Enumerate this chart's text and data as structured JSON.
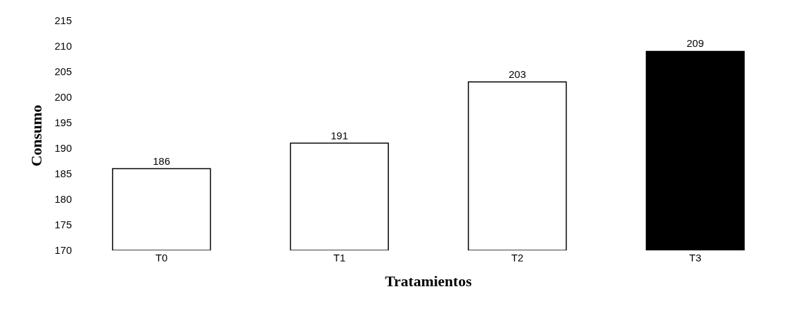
{
  "chart_data": {
    "type": "bar",
    "xlabel": "Tratamientos",
    "ylabel": "Consumo",
    "categories": [
      "T0",
      "T1",
      "T2",
      "T3"
    ],
    "values": [
      186,
      191,
      203,
      209
    ],
    "colors": [
      "#ffffff",
      "#ffffff",
      "#ffffff",
      "#000000"
    ],
    "ylim": [
      170,
      215
    ],
    "yticks": [
      170,
      175,
      180,
      185,
      190,
      195,
      200,
      205,
      210,
      215
    ],
    "grid": false,
    "data_labels": true
  }
}
